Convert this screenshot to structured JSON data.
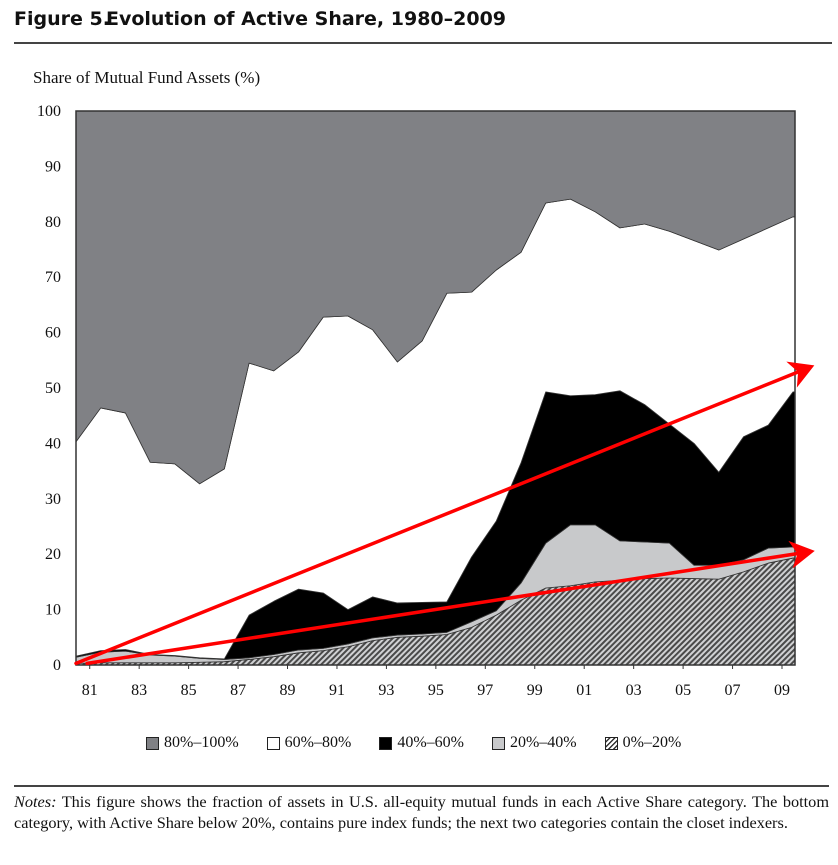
{
  "figure": {
    "number": "Figure 5.",
    "title": "Evolution of Active Share, 1980–2009"
  },
  "notes": {
    "lead": "Notes:",
    "text": " This figure shows the fraction of assets in U.S. all-equity mutual funds in each Active Share category. The bottom category, with Active Share below 20%, contains pure index funds; the next two categories contain the closet indexers."
  },
  "chart_data": {
    "type": "area",
    "stacked": true,
    "title": "Evolution of Active Share, 1980–2009",
    "xlabel": "",
    "ylabel": "Share of Mutual Fund Assets (%)",
    "xlim": [
      1980,
      2009
    ],
    "ylim": [
      0,
      100
    ],
    "grid": false,
    "legend_position": "bottom",
    "x": [
      1980,
      1981,
      1982,
      1983,
      1984,
      1985,
      1986,
      1987,
      1988,
      1989,
      1990,
      1991,
      1992,
      1993,
      1994,
      1995,
      1996,
      1997,
      1998,
      1999,
      2000,
      2001,
      2002,
      2003,
      2004,
      2005,
      2006,
      2007,
      2008,
      2009
    ],
    "x_tick_labels": [
      {
        "year": 1981,
        "label": "81"
      },
      {
        "year": 1983,
        "label": "83"
      },
      {
        "year": 1985,
        "label": "85"
      },
      {
        "year": 1987,
        "label": "87"
      },
      {
        "year": 1989,
        "label": "89"
      },
      {
        "year": 1991,
        "label": "91"
      },
      {
        "year": 1993,
        "label": "93"
      },
      {
        "year": 1995,
        "label": "95"
      },
      {
        "year": 1997,
        "label": "97"
      },
      {
        "year": 1999,
        "label": "99"
      },
      {
        "year": 2001,
        "label": "01"
      },
      {
        "year": 2003,
        "label": "03"
      },
      {
        "year": 2005,
        "label": "05"
      },
      {
        "year": 2007,
        "label": "07"
      },
      {
        "year": 2009,
        "label": "09"
      }
    ],
    "y_ticks": [
      0,
      10,
      20,
      30,
      40,
      50,
      60,
      70,
      80,
      90,
      100
    ],
    "series": [
      {
        "name": "0%–20%",
        "fill": "hatch",
        "color": "#c8c9cb",
        "values": [
          0.3,
          0.4,
          0.4,
          0.4,
          0.4,
          0.5,
          0.6,
          1.0,
          1.5,
          2.2,
          2.6,
          3.3,
          4.4,
          5.0,
          5.2,
          5.5,
          6.8,
          9.0,
          11.7,
          13.9,
          14.3,
          15.0,
          15.3,
          15.6,
          15.7,
          15.6,
          15.5,
          16.8,
          18.4,
          19.3
        ]
      },
      {
        "name": "20%–40%",
        "fill": "solid",
        "color": "#c8c9cb",
        "values": [
          1.1,
          1.9,
          2.1,
          1.4,
          1.2,
          0.7,
          0.4,
          0.3,
          0.4,
          0.5,
          0.4,
          0.5,
          0.5,
          0.4,
          0.4,
          0.4,
          1.0,
          0.8,
          3.1,
          8.1,
          11.0,
          10.3,
          7.1,
          6.6,
          6.3,
          2.4,
          2.5,
          2.2,
          2.7,
          2.0
        ]
      },
      {
        "name": "40%–60%",
        "fill": "solid",
        "color": "#000000",
        "values": [
          0.2,
          0.3,
          0.3,
          0.1,
          0.1,
          0.1,
          0.1,
          7.7,
          9.6,
          11.0,
          10.0,
          6.2,
          7.4,
          5.8,
          5.7,
          5.5,
          11.7,
          16.2,
          21.7,
          27.3,
          23.3,
          23.5,
          27.1,
          24.8,
          21.5,
          22.0,
          16.8,
          22.2,
          22.2,
          28.0
        ]
      },
      {
        "name": "60%–80%",
        "fill": "solid",
        "color": "#ffffff",
        "values": [
          38.7,
          43.8,
          42.7,
          34.7,
          34.6,
          31.4,
          34.3,
          45.5,
          41.6,
          42.8,
          49.8,
          53.0,
          48.2,
          43.5,
          47.2,
          55.7,
          47.8,
          45.3,
          38.0,
          34.1,
          35.5,
          33.0,
          29.4,
          32.6,
          34.8,
          36.6,
          40.1,
          35.7,
          35.6,
          31.6
        ]
      },
      {
        "name": "80%–100%",
        "fill": "solid",
        "color": "#808185",
        "values": [
          59.7,
          53.6,
          54.5,
          63.4,
          63.7,
          67.3,
          64.6,
          45.5,
          46.9,
          43.5,
          37.2,
          37.0,
          39.5,
          45.3,
          41.5,
          32.9,
          32.7,
          28.7,
          25.5,
          16.6,
          15.9,
          18.2,
          21.1,
          20.4,
          21.7,
          23.4,
          25.1,
          23.1,
          21.1,
          19.1
        ]
      }
    ],
    "legend": [
      {
        "label": "80%–100%",
        "swatch": "80"
      },
      {
        "label": "60%–80%",
        "swatch": "60"
      },
      {
        "label": "40%–60%",
        "swatch": "40"
      },
      {
        "label": "20%–40%",
        "swatch": "20"
      },
      {
        "label": "0%–20%",
        "swatch": "0"
      }
    ],
    "annotations": [
      {
        "type": "arrow",
        "name": "upper-trend-arrow",
        "color": "#ff0000",
        "from": [
          1980.0,
          0.3
        ],
        "to": [
          2009.6,
          53.6
        ]
      },
      {
        "type": "arrow",
        "name": "lower-trend-arrow",
        "color": "#ff0000",
        "from": [
          1980.45,
          0.3
        ],
        "to": [
          2009.6,
          20.4
        ]
      }
    ]
  }
}
